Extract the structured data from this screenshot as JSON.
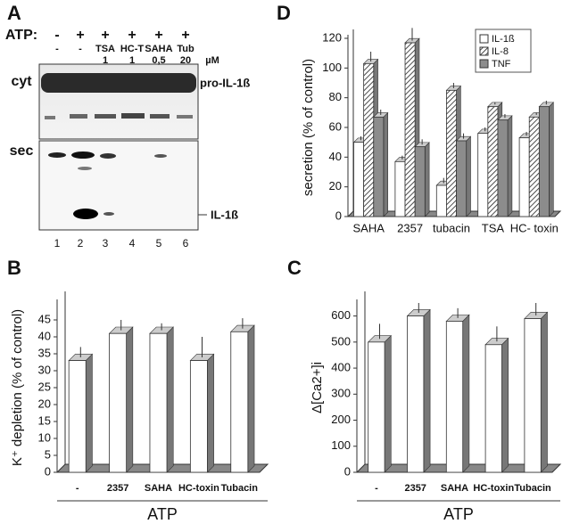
{
  "panel_a": {
    "label": "A",
    "atp_label": "ATP:",
    "atp_signs": [
      "-",
      "+",
      "+",
      "+",
      "+",
      "+"
    ],
    "treatments": [
      "-",
      "-",
      "TSA",
      "HC-T",
      "SAHA",
      "Tub"
    ],
    "doses": [
      "1",
      "1",
      "0,5",
      "20"
    ],
    "dose_unit": "µM",
    "cyt_label": "cyt",
    "sec_label": "sec",
    "cyt_band": "pro-IL-1ß",
    "sec_band": "IL-1ß",
    "lanes": [
      "1",
      "2",
      "3",
      "4",
      "5",
      "6"
    ]
  },
  "chart_data": [
    {
      "type": "bar",
      "label": "D",
      "ylabel": "secretion (% of control)",
      "categories": [
        "SAHA",
        "2357",
        "tubacin",
        "TSA",
        "HC- toxin"
      ],
      "series": [
        {
          "name": "IL-1ß",
          "color": "#ffffff",
          "values": [
            50,
            37,
            21,
            56,
            53
          ],
          "errors": [
            4,
            4,
            5,
            4,
            4
          ]
        },
        {
          "name": "IL-8",
          "color": "#ffffff",
          "hatch": true,
          "values": [
            103,
            117,
            85,
            74,
            67
          ],
          "errors": [
            8,
            10,
            5,
            3,
            3
          ]
        },
        {
          "name": "TNF",
          "color": "#8c8c8c",
          "values": [
            67,
            47,
            51,
            65,
            74
          ],
          "errors": [
            5,
            5,
            5,
            4,
            4
          ]
        }
      ],
      "ylim": [
        0,
        120
      ],
      "yticks": [
        0,
        20,
        40,
        60,
        80,
        100,
        120
      ],
      "legend": "top-right"
    },
    {
      "type": "bar",
      "label": "B",
      "ylabel": "K⁺ depletion (% of control)",
      "xgroup": "ATP",
      "categories": [
        "-",
        "2357",
        "SAHA",
        "HC-toxin",
        "Tubacin"
      ],
      "values": [
        33,
        41,
        41,
        33,
        41.5
      ],
      "errors": [
        4,
        4,
        3,
        7,
        4
      ],
      "color": "#ffffff",
      "ylim": [
        0,
        50
      ],
      "yticks": [
        0,
        5,
        10,
        15,
        20,
        25,
        30,
        35,
        40,
        45
      ]
    },
    {
      "type": "bar",
      "label": "C",
      "ylabel": "Δ[Ca2+]i",
      "xgroup": "ATP",
      "categories": [
        "-",
        "2357",
        "SAHA",
        "HC-toxin",
        "Tubacin"
      ],
      "values": [
        500,
        600,
        580,
        490,
        590
      ],
      "errors": [
        70,
        50,
        50,
        70,
        60
      ],
      "color": "#ffffff",
      "ylim": [
        0,
        650
      ],
      "yticks": [
        0,
        100,
        200,
        300,
        400,
        500,
        600
      ]
    }
  ]
}
